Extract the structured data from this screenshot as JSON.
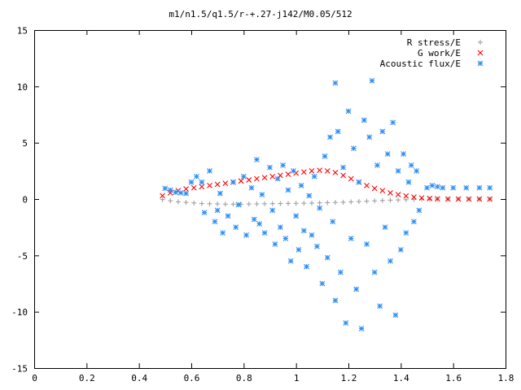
{
  "chart_data": {
    "type": "scatter",
    "title": "m1/n1.5/q1.5/r-+.27-j142/M0.05/512",
    "xlabel": "",
    "ylabel": "",
    "xlim": [
      0,
      1.8
    ],
    "ylim": [
      -15,
      15
    ],
    "x_ticks": [
      "0",
      "0.2",
      "0.4",
      "0.6",
      "0.8",
      "1",
      "1.2",
      "1.4",
      "1.6",
      "1.8"
    ],
    "y_ticks": [
      "-15",
      "-10",
      "-5",
      "0",
      "5",
      "10",
      "15"
    ],
    "grid": false,
    "legend_position": "top-right",
    "series": [
      {
        "name": "R stress/E",
        "marker": "+",
        "color": "#a0a0a0",
        "points": [
          [
            0.49,
            -0.05
          ],
          [
            0.52,
            -0.15
          ],
          [
            0.55,
            -0.25
          ],
          [
            0.58,
            -0.3
          ],
          [
            0.61,
            -0.35
          ],
          [
            0.64,
            -0.4
          ],
          [
            0.67,
            -0.42
          ],
          [
            0.7,
            -0.43
          ],
          [
            0.73,
            -0.45
          ],
          [
            0.76,
            -0.45
          ],
          [
            0.79,
            -0.45
          ],
          [
            0.82,
            -0.44
          ],
          [
            0.85,
            -0.43
          ],
          [
            0.88,
            -0.42
          ],
          [
            0.91,
            -0.41
          ],
          [
            0.94,
            -0.4
          ],
          [
            0.97,
            -0.39
          ],
          [
            1.0,
            -0.38
          ],
          [
            1.03,
            -0.37
          ],
          [
            1.06,
            -0.36
          ],
          [
            1.09,
            -0.34
          ],
          [
            1.12,
            -0.32
          ],
          [
            1.15,
            -0.3
          ],
          [
            1.18,
            -0.28
          ],
          [
            1.21,
            -0.25
          ],
          [
            1.24,
            -0.22
          ],
          [
            1.27,
            -0.19
          ],
          [
            1.3,
            -0.16
          ],
          [
            1.33,
            -0.13
          ],
          [
            1.36,
            -0.1
          ],
          [
            1.39,
            -0.08
          ],
          [
            1.42,
            -0.06
          ],
          [
            1.45,
            -0.04
          ],
          [
            1.48,
            -0.02
          ],
          [
            1.51,
            -0.01
          ],
          [
            1.54,
            0.0
          ],
          [
            1.58,
            0.0
          ],
          [
            1.62,
            0.0
          ],
          [
            1.66,
            0.0
          ],
          [
            1.7,
            0.0
          ],
          [
            1.74,
            0.0
          ]
        ]
      },
      {
        "name": "G work/E",
        "marker": "x",
        "color": "#ff0000",
        "points": [
          [
            0.49,
            0.3
          ],
          [
            0.52,
            0.55
          ],
          [
            0.55,
            0.75
          ],
          [
            0.58,
            0.9
          ],
          [
            0.61,
            1.0
          ],
          [
            0.64,
            1.1
          ],
          [
            0.67,
            1.2
          ],
          [
            0.7,
            1.3
          ],
          [
            0.73,
            1.4
          ],
          [
            0.76,
            1.5
          ],
          [
            0.79,
            1.6
          ],
          [
            0.82,
            1.7
          ],
          [
            0.85,
            1.8
          ],
          [
            0.88,
            1.9
          ],
          [
            0.91,
            2.0
          ],
          [
            0.94,
            2.1
          ],
          [
            0.97,
            2.2
          ],
          [
            1.0,
            2.3
          ],
          [
            1.03,
            2.4
          ],
          [
            1.06,
            2.5
          ],
          [
            1.09,
            2.55
          ],
          [
            1.12,
            2.5
          ],
          [
            1.15,
            2.35
          ],
          [
            1.18,
            2.1
          ],
          [
            1.21,
            1.8
          ],
          [
            1.24,
            1.5
          ],
          [
            1.27,
            1.2
          ],
          [
            1.3,
            0.95
          ],
          [
            1.33,
            0.75
          ],
          [
            1.36,
            0.55
          ],
          [
            1.39,
            0.4
          ],
          [
            1.42,
            0.28
          ],
          [
            1.45,
            0.18
          ],
          [
            1.48,
            0.1
          ],
          [
            1.51,
            0.05
          ],
          [
            1.54,
            0.02
          ],
          [
            1.58,
            0.0
          ],
          [
            1.62,
            0.0
          ],
          [
            1.66,
            0.0
          ],
          [
            1.7,
            0.0
          ],
          [
            1.74,
            0.0
          ]
        ]
      },
      {
        "name": "Acoustic flux/E",
        "marker": "*",
        "color": "#2d8ef5",
        "points": [
          [
            0.5,
            0.95
          ],
          [
            0.52,
            0.8
          ],
          [
            0.54,
            0.6
          ],
          [
            0.56,
            0.55
          ],
          [
            0.58,
            0.5
          ],
          [
            0.6,
            1.5
          ],
          [
            0.62,
            2.0
          ],
          [
            0.64,
            1.5
          ],
          [
            0.65,
            -1.2
          ],
          [
            0.67,
            2.5
          ],
          [
            0.69,
            -2.0
          ],
          [
            0.7,
            -1.0
          ],
          [
            0.71,
            0.5
          ],
          [
            0.72,
            -3.0
          ],
          [
            0.74,
            -1.5
          ],
          [
            0.76,
            1.5
          ],
          [
            0.77,
            -2.5
          ],
          [
            0.78,
            -0.5
          ],
          [
            0.8,
            2.0
          ],
          [
            0.81,
            -3.2
          ],
          [
            0.83,
            1.0
          ],
          [
            0.84,
            -1.8
          ],
          [
            0.85,
            3.5
          ],
          [
            0.86,
            -2.2
          ],
          [
            0.87,
            0.4
          ],
          [
            0.88,
            -3.0
          ],
          [
            0.9,
            2.8
          ],
          [
            0.91,
            -1.0
          ],
          [
            0.92,
            -4.0
          ],
          [
            0.93,
            1.8
          ],
          [
            0.94,
            -2.5
          ],
          [
            0.95,
            3.0
          ],
          [
            0.96,
            -3.5
          ],
          [
            0.97,
            0.8
          ],
          [
            0.98,
            -5.5
          ],
          [
            0.99,
            2.5
          ],
          [
            1.0,
            -1.5
          ],
          [
            1.01,
            -4.5
          ],
          [
            1.02,
            1.2
          ],
          [
            1.03,
            -2.8
          ],
          [
            1.04,
            -6.0
          ],
          [
            1.05,
            0.3
          ],
          [
            1.06,
            -3.2
          ],
          [
            1.07,
            2.0
          ],
          [
            1.08,
            -4.2
          ],
          [
            1.09,
            -0.8
          ],
          [
            1.1,
            -7.5
          ],
          [
            1.11,
            3.8
          ],
          [
            1.12,
            -5.2
          ],
          [
            1.13,
            5.5
          ],
          [
            1.14,
            -2.0
          ],
          [
            1.15,
            -9.0
          ],
          [
            1.15,
            10.3
          ],
          [
            1.16,
            6.0
          ],
          [
            1.17,
            -6.5
          ],
          [
            1.18,
            2.8
          ],
          [
            1.19,
            -11.0
          ],
          [
            1.2,
            7.8
          ],
          [
            1.21,
            -3.5
          ],
          [
            1.22,
            4.5
          ],
          [
            1.23,
            -8.0
          ],
          [
            1.24,
            1.5
          ],
          [
            1.25,
            -11.5
          ],
          [
            1.26,
            7.0
          ],
          [
            1.27,
            -4.0
          ],
          [
            1.28,
            5.5
          ],
          [
            1.29,
            10.5
          ],
          [
            1.3,
            -6.5
          ],
          [
            1.31,
            3.0
          ],
          [
            1.32,
            -9.5
          ],
          [
            1.33,
            6.0
          ],
          [
            1.34,
            -2.5
          ],
          [
            1.35,
            4.0
          ],
          [
            1.36,
            -5.5
          ],
          [
            1.37,
            6.8
          ],
          [
            1.38,
            -10.3
          ],
          [
            1.39,
            2.5
          ],
          [
            1.4,
            -4.5
          ],
          [
            1.41,
            4.0
          ],
          [
            1.42,
            -3.0
          ],
          [
            1.43,
            1.5
          ],
          [
            1.44,
            3.0
          ],
          [
            1.45,
            -2.0
          ],
          [
            1.46,
            2.5
          ],
          [
            1.47,
            -1.0
          ],
          [
            1.5,
            1.0
          ],
          [
            1.52,
            1.2
          ],
          [
            1.54,
            1.1
          ],
          [
            1.56,
            1.0
          ],
          [
            1.6,
            1.0
          ],
          [
            1.65,
            1.0
          ],
          [
            1.7,
            1.0
          ],
          [
            1.74,
            1.0
          ]
        ]
      }
    ]
  }
}
